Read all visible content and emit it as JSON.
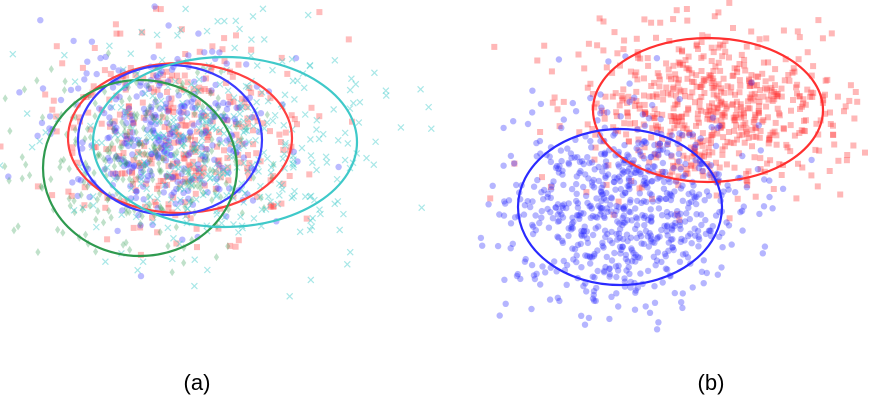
{
  "figure": {
    "panels": [
      {
        "id": "a",
        "caption": "(a)"
      },
      {
        "id": "b",
        "caption": "(b)"
      }
    ]
  },
  "chart_data": [
    {
      "type": "scatter",
      "panel": "(a)",
      "title": "",
      "xlabel": "",
      "ylabel": "",
      "xlim": [
        0,
        460
      ],
      "ylim": [
        0,
        330
      ],
      "axes": "hidden",
      "grid": false,
      "legend": "none",
      "series": [
        {
          "color": "#ff4040",
          "marker": "square",
          "center": [
            180,
            135
          ],
          "spread": [
            62,
            48
          ],
          "count": 330,
          "ellipse": {
            "cx": 180,
            "cy": 138,
            "rx": 112,
            "ry": 75
          }
        },
        {
          "color": "#3b3bff",
          "marker": "circle",
          "center": [
            165,
            132
          ],
          "spread": [
            55,
            44
          ],
          "count": 330,
          "ellipse": {
            "cx": 170,
            "cy": 140,
            "rx": 92,
            "ry": 75
          }
        },
        {
          "color": "#2e9a4f",
          "marker": "diamond",
          "center": [
            135,
            160
          ],
          "spread": [
            58,
            48
          ],
          "count": 260,
          "ellipse": {
            "cx": 140,
            "cy": 168,
            "rx": 97,
            "ry": 88
          }
        },
        {
          "color": "#3fc9c9",
          "marker": "cross",
          "center": [
            225,
            145
          ],
          "spread": [
            75,
            52
          ],
          "count": 380,
          "ellipse": {
            "cx": 225,
            "cy": 142,
            "rx": 132,
            "ry": 85
          }
        }
      ]
    },
    {
      "type": "scatter",
      "panel": "(b)",
      "title": "",
      "xlabel": "",
      "ylabel": "",
      "xlim": [
        0,
        390
      ],
      "ylim": [
        0,
        330
      ],
      "axes": "hidden",
      "grid": false,
      "legend": "none",
      "series": [
        {
          "color": "#ff3030",
          "marker": "square",
          "center": [
            230,
            110
          ],
          "spread": [
            65,
            42
          ],
          "count": 620,
          "ellipse": {
            "cx": 228,
            "cy": 110,
            "rx": 115,
            "ry": 72
          }
        },
        {
          "color": "#2a2aff",
          "marker": "circle",
          "center": [
            140,
            210
          ],
          "spread": [
            58,
            50
          ],
          "count": 720,
          "ellipse": {
            "cx": 140,
            "cy": 207,
            "rx": 102,
            "ry": 78
          }
        }
      ]
    }
  ]
}
